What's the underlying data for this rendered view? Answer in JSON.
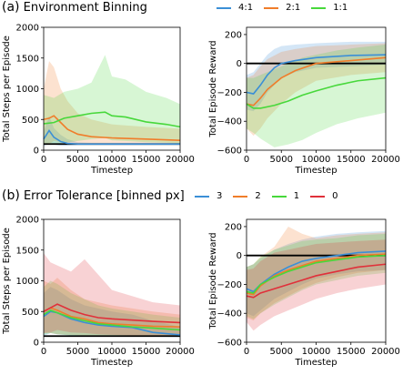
{
  "section_a": {
    "tag": "(a)",
    "title": "Environment Binning",
    "legend": [
      {
        "label": "4:1",
        "color": "#3b8fd6"
      },
      {
        "label": "2:1",
        "color": "#f07d2a"
      },
      {
        "label": "1:1",
        "color": "#47d83b"
      }
    ]
  },
  "section_b": {
    "tag": "(b)",
    "title": "Error Tolerance [binned px]",
    "legend": [
      {
        "label": "3",
        "color": "#3b8fd6"
      },
      {
        "label": "2",
        "color": "#f07d2a"
      },
      {
        "label": "1",
        "color": "#47d83b"
      },
      {
        "label": "0",
        "color": "#e0303a"
      }
    ]
  },
  "chart_data": [
    {
      "type": "line",
      "ylabel": "Total Steps per Episode",
      "xlabel": "Timestep",
      "xlim": [
        0,
        20000
      ],
      "ylim": [
        0,
        2000
      ],
      "xticks": [
        "0",
        "5000",
        "10000",
        "15000",
        "20000"
      ],
      "yticks": [
        "0",
        "500",
        "1000",
        "1500",
        "2000"
      ],
      "hline": 100,
      "series": [
        {
          "name": "4:1",
          "color": "#3b8fd6",
          "x": [
            0,
            800,
            1500,
            2500,
            3500,
            5000,
            7000,
            10000,
            15000,
            20000
          ],
          "y": [
            180,
            320,
            210,
            140,
            110,
            100,
            100,
            100,
            100,
            100
          ],
          "lo": [
            60,
            120,
            90,
            70,
            70,
            80,
            80,
            80,
            80,
            80
          ],
          "hi": [
            300,
            560,
            360,
            250,
            180,
            130,
            120,
            120,
            120,
            120
          ]
        },
        {
          "name": "2:1",
          "color": "#f07d2a",
          "x": [
            0,
            800,
            1500,
            2500,
            3500,
            5000,
            7000,
            10000,
            15000,
            20000
          ],
          "y": [
            500,
            520,
            560,
            450,
            340,
            260,
            220,
            200,
            180,
            160
          ],
          "lo": [
            100,
            100,
            150,
            130,
            120,
            110,
            110,
            100,
            100,
            100
          ],
          "hi": [
            1000,
            1450,
            1350,
            1000,
            800,
            600,
            500,
            420,
            380,
            350
          ]
        },
        {
          "name": "1:1",
          "color": "#47d83b",
          "x": [
            0,
            1500,
            3000,
            5000,
            7000,
            9000,
            10000,
            12000,
            15000,
            18000,
            20000
          ],
          "y": [
            430,
            450,
            520,
            560,
            600,
            620,
            560,
            540,
            460,
            420,
            380
          ],
          "lo": [
            100,
            100,
            120,
            150,
            180,
            200,
            160,
            150,
            130,
            120,
            110
          ],
          "hi": [
            900,
            850,
            950,
            1000,
            1100,
            1550,
            1200,
            1150,
            950,
            850,
            750
          ]
        }
      ]
    },
    {
      "type": "line",
      "ylabel": "Total Episode Reward",
      "xlabel": "Timestep",
      "xlim": [
        0,
        20000
      ],
      "ylim": [
        -600,
        250
      ],
      "xticks": [
        "0",
        "5000",
        "10000",
        "15000",
        "20000"
      ],
      "yticks": [
        "−600",
        "−400",
        "−200",
        "0",
        "200"
      ],
      "hline": 0,
      "series": [
        {
          "name": "4:1",
          "color": "#3b8fd6",
          "x": [
            0,
            1000,
            2000,
            3000,
            4000,
            5000,
            7000,
            10000,
            15000,
            20000
          ],
          "y": [
            -200,
            -210,
            -150,
            -80,
            -30,
            0,
            20,
            40,
            55,
            60
          ],
          "lo": [
            -320,
            -330,
            -280,
            -200,
            -150,
            -100,
            -60,
            -30,
            -20,
            -10
          ],
          "hi": [
            -80,
            -60,
            0,
            60,
            100,
            120,
            130,
            140,
            150,
            150
          ]
        },
        {
          "name": "2:1",
          "color": "#f07d2a",
          "x": [
            0,
            1000,
            2000,
            3000,
            5000,
            7000,
            10000,
            15000,
            20000
          ],
          "y": [
            -280,
            -290,
            -240,
            -180,
            -100,
            -50,
            0,
            20,
            40
          ],
          "lo": [
            -450,
            -500,
            -450,
            -380,
            -280,
            -200,
            -120,
            -80,
            -60
          ],
          "hi": [
            -100,
            -80,
            -20,
            30,
            80,
            100,
            120,
            130,
            140
          ]
        },
        {
          "name": "1:1",
          "color": "#47d83b",
          "x": [
            0,
            1000,
            2000,
            4000,
            6000,
            8000,
            10000,
            13000,
            16000,
            20000
          ],
          "y": [
            -280,
            -310,
            -310,
            -290,
            -260,
            -220,
            -190,
            -150,
            -120,
            -100
          ],
          "lo": [
            -450,
            -480,
            -520,
            -580,
            -560,
            -530,
            -480,
            -420,
            -380,
            -340
          ],
          "hi": [
            -100,
            -100,
            -80,
            -40,
            0,
            40,
            60,
            90,
            110,
            130
          ]
        }
      ]
    },
    {
      "type": "line",
      "ylabel": "Total Steps per Episode",
      "xlabel": "Timestep",
      "xlim": [
        0,
        20000
      ],
      "ylim": [
        0,
        2000
      ],
      "xticks": [
        "0",
        "5000",
        "10000",
        "15000",
        "20000"
      ],
      "yticks": [
        "0",
        "500",
        "1000",
        "1500",
        "2000"
      ],
      "hline": 100,
      "series": [
        {
          "name": "3",
          "color": "#3b8fd6",
          "x": [
            0,
            1000,
            2000,
            4000,
            6000,
            8000,
            10000,
            13000,
            16000,
            20000
          ],
          "y": [
            420,
            500,
            480,
            380,
            320,
            280,
            260,
            240,
            160,
            120
          ],
          "lo": [
            100,
            150,
            130,
            110,
            100,
            100,
            100,
            100,
            90,
            80
          ],
          "hi": [
            800,
            900,
            850,
            700,
            600,
            550,
            500,
            450,
            350,
            250
          ]
        },
        {
          "name": "2",
          "color": "#f07d2a",
          "x": [
            0,
            1000,
            2000,
            4000,
            6000,
            8000,
            10000,
            13000,
            16000,
            20000
          ],
          "y": [
            500,
            560,
            520,
            420,
            380,
            320,
            300,
            280,
            260,
            250
          ],
          "lo": [
            150,
            150,
            130,
            120,
            110,
            110,
            100,
            100,
            100,
            100
          ],
          "hi": [
            1000,
            950,
            1050,
            850,
            700,
            650,
            600,
            550,
            500,
            450
          ]
        },
        {
          "name": "1",
          "color": "#47d83b",
          "x": [
            0,
            1000,
            2000,
            4000,
            6000,
            8000,
            10000,
            13000,
            16000,
            20000
          ],
          "y": [
            450,
            520,
            480,
            400,
            350,
            300,
            280,
            250,
            230,
            200
          ],
          "lo": [
            120,
            150,
            130,
            110,
            100,
            100,
            100,
            100,
            100,
            90
          ],
          "hi": [
            900,
            1000,
            950,
            800,
            700,
            600,
            550,
            500,
            450,
            400
          ]
        },
        {
          "name": "0",
          "color": "#e0303a",
          "x": [
            0,
            1000,
            2000,
            4000,
            6000,
            8000,
            10000,
            13000,
            16000,
            20000
          ],
          "y": [
            500,
            560,
            620,
            520,
            450,
            400,
            380,
            360,
            340,
            320
          ],
          "lo": [
            150,
            160,
            200,
            160,
            150,
            130,
            120,
            110,
            110,
            100
          ],
          "hi": [
            1450,
            1300,
            1250,
            1150,
            1350,
            1100,
            850,
            750,
            650,
            600
          ]
        }
      ]
    },
    {
      "type": "line",
      "ylabel": "Total Episode Reward",
      "xlabel": "Timestep",
      "xlim": [
        0,
        20000
      ],
      "ylim": [
        -600,
        250
      ],
      "xticks": [
        "0",
        "5000",
        "10000",
        "15000",
        "20000"
      ],
      "yticks": [
        "−600",
        "−400",
        "−200",
        "0",
        "200"
      ],
      "hline": 0,
      "series": [
        {
          "name": "3",
          "color": "#3b8fd6",
          "x": [
            0,
            1000,
            2000,
            4000,
            6000,
            8000,
            10000,
            13000,
            16000,
            20000
          ],
          "y": [
            -230,
            -250,
            -200,
            -130,
            -80,
            -40,
            -20,
            0,
            20,
            30
          ],
          "lo": [
            -400,
            -420,
            -380,
            -300,
            -250,
            -200,
            -160,
            -130,
            -110,
            -100
          ],
          "hi": [
            -80,
            -60,
            -20,
            40,
            80,
            110,
            130,
            150,
            160,
            170
          ]
        },
        {
          "name": "2",
          "color": "#f07d2a",
          "x": [
            0,
            1000,
            2000,
            4000,
            6000,
            8000,
            10000,
            13000,
            16000,
            20000
          ],
          "y": [
            -260,
            -270,
            -210,
            -140,
            -100,
            -70,
            -40,
            -20,
            0,
            10
          ],
          "lo": [
            -430,
            -450,
            -400,
            -330,
            -280,
            -230,
            -190,
            -150,
            -120,
            -100
          ],
          "hi": [
            -80,
            -60,
            -10,
            60,
            200,
            150,
            120,
            140,
            150,
            160
          ]
        },
        {
          "name": "1",
          "color": "#47d83b",
          "x": [
            0,
            1000,
            2000,
            4000,
            6000,
            8000,
            10000,
            13000,
            16000,
            20000
          ],
          "y": [
            -250,
            -260,
            -200,
            -150,
            -110,
            -80,
            -50,
            -30,
            -10,
            0
          ],
          "lo": [
            -420,
            -440,
            -400,
            -340,
            -290,
            -240,
            -200,
            -170,
            -140,
            -120
          ],
          "hi": [
            -80,
            -60,
            -10,
            40,
            70,
            100,
            110,
            120,
            140,
            150
          ]
        },
        {
          "name": "0",
          "color": "#e0303a",
          "x": [
            0,
            1000,
            2000,
            4000,
            6000,
            8000,
            10000,
            13000,
            16000,
            20000
          ],
          "y": [
            -280,
            -290,
            -260,
            -230,
            -200,
            -170,
            -140,
            -110,
            -80,
            -60
          ],
          "lo": [
            -460,
            -520,
            -480,
            -420,
            -380,
            -340,
            -300,
            -260,
            -230,
            -200
          ],
          "hi": [
            -100,
            -90,
            -40,
            20,
            40,
            60,
            80,
            90,
            100,
            110
          ]
        }
      ]
    }
  ]
}
